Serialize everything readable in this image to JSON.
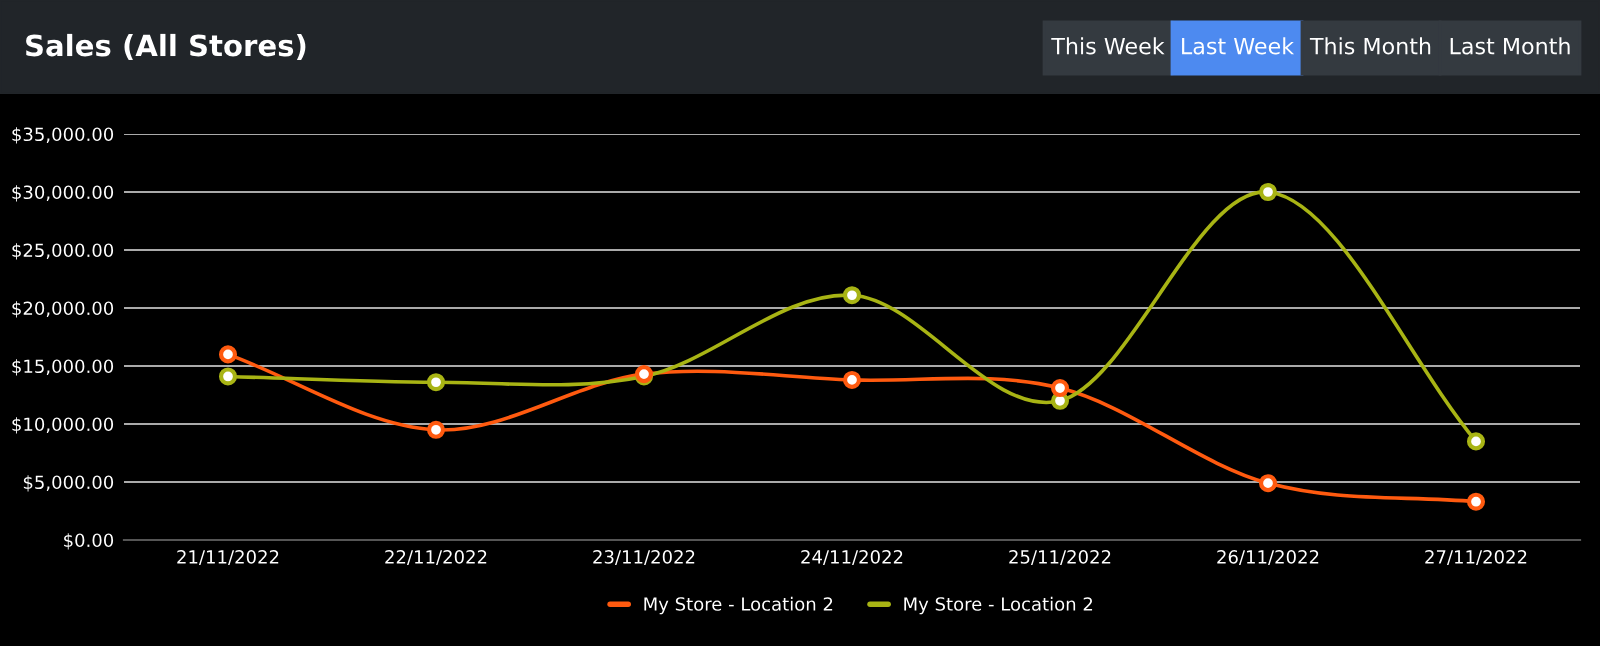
{
  "chart_data": {
    "type": "line",
    "title": "Sales (All Stores)",
    "annotations": [
      "This Week",
      "Last Week",
      "This Month",
      "Last Month"
    ],
    "categories": [
      "21/11/2022",
      "22/11/2022",
      "23/11/2022",
      "24/11/2022",
      "25/11/2022",
      "26/11/2022",
      "27/11/2022"
    ],
    "series": [
      {
        "name": "My Store - Location 2",
        "color": "#ff5a0f",
        "values": [
          16000,
          9500,
          14300,
          13800,
          13100,
          4900,
          3300
        ]
      },
      {
        "name": "My Store - Location 2",
        "color": "#a8b414",
        "values": [
          14100,
          13600,
          14100,
          21100,
          12000,
          30000,
          8500
        ]
      }
    ],
    "ylim": [
      0,
      35000
    ],
    "yticks": [
      {
        "value": 0,
        "label": "$0.00"
      },
      {
        "value": 5000,
        "label": "$5,000.00"
      },
      {
        "value": 10000,
        "label": "$10,000.00"
      },
      {
        "value": 15000,
        "label": "$15,000.00"
      },
      {
        "value": 20000,
        "label": "$20,000.00"
      },
      {
        "value": 25000,
        "label": "$25,000.00"
      },
      {
        "value": 30000,
        "label": "$30,000.00"
      },
      {
        "value": 35000,
        "label": "$35,000.00"
      }
    ],
    "grid": "y",
    "legend": "bottom",
    "marker": "circle",
    "line_style": "solid"
  }
}
